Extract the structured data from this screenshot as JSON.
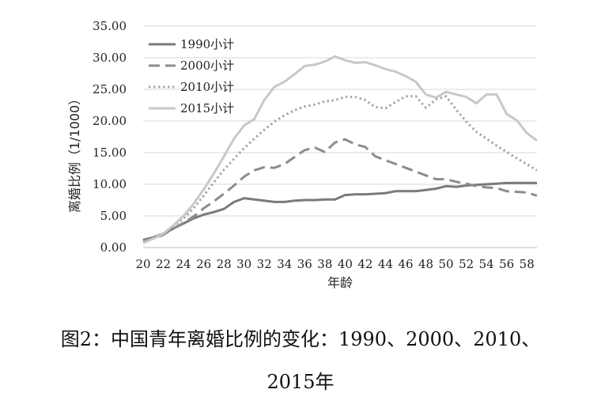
{
  "caption": {
    "line1": "图2：中国青年离婚比例的变化：1990、2000、2010、",
    "line2": "2015年"
  },
  "chart_data": {
    "type": "line",
    "xlabel": "年龄",
    "ylabel": "离婚比例（1/1000）",
    "ylim": [
      0,
      35
    ],
    "xlim": [
      20,
      59
    ],
    "y_ticks": [
      "0.00",
      "5.00",
      "10.00",
      "15.00",
      "20.00",
      "25.00",
      "30.00",
      "35.00"
    ],
    "x_ticks": [
      "20",
      "22",
      "24",
      "26",
      "28",
      "30",
      "32",
      "34",
      "36",
      "38",
      "40",
      "42",
      "44",
      "46",
      "48",
      "50",
      "52",
      "54",
      "56",
      "58"
    ],
    "grid": true,
    "legend_position": "top-left",
    "x": [
      20,
      21,
      22,
      23,
      24,
      25,
      26,
      27,
      28,
      29,
      30,
      31,
      32,
      33,
      34,
      35,
      36,
      37,
      38,
      39,
      40,
      41,
      42,
      43,
      44,
      45,
      46,
      47,
      48,
      49,
      50,
      51,
      52,
      53,
      54,
      55,
      56,
      57,
      58,
      59
    ],
    "series": [
      {
        "name": "1990小计",
        "color": "#7a7a7a",
        "dash": "solid",
        "values": [
          1.2,
          1.6,
          2.2,
          3.0,
          3.8,
          4.6,
          5.2,
          5.6,
          6.1,
          7.2,
          7.8,
          7.6,
          7.4,
          7.2,
          7.2,
          7.4,
          7.5,
          7.5,
          7.6,
          7.6,
          8.3,
          8.4,
          8.4,
          8.5,
          8.6,
          8.9,
          8.9,
          8.9,
          9.1,
          9.3,
          9.7,
          9.6,
          9.8,
          9.9,
          10.0,
          10.1,
          10.2,
          10.2,
          10.2,
          10.2
        ]
      },
      {
        "name": "2000小计",
        "color": "#8c8c8c",
        "dash": "dashed",
        "values": [
          1.0,
          1.4,
          2.0,
          3.0,
          3.9,
          4.9,
          6.2,
          7.3,
          8.5,
          9.8,
          11.2,
          12.2,
          12.7,
          12.6,
          13.2,
          14.3,
          15.4,
          15.8,
          15.1,
          16.6,
          17.1,
          16.3,
          15.9,
          14.4,
          13.8,
          13.2,
          12.6,
          12.0,
          11.4,
          10.8,
          10.8,
          10.4,
          10.1,
          9.7,
          9.5,
          9.4,
          8.9,
          8.8,
          8.7,
          8.2
        ]
      },
      {
        "name": "2010小计",
        "color": "#a8a8a8",
        "dash": "dotted",
        "values": [
          0.9,
          1.5,
          2.2,
          3.3,
          4.6,
          6.2,
          8.2,
          10.3,
          12.3,
          14.0,
          15.7,
          17.2,
          18.6,
          19.9,
          20.9,
          21.7,
          22.3,
          22.6,
          23.1,
          23.3,
          23.8,
          23.8,
          23.3,
          22.2,
          22.0,
          23.0,
          23.9,
          23.9,
          22.1,
          23.4,
          23.9,
          21.8,
          19.9,
          18.3,
          17.2,
          16.1,
          15.1,
          14.1,
          13.2,
          12.2
        ]
      },
      {
        "name": "2015小计",
        "color": "#c8c8c8",
        "dash": "solid",
        "values": [
          0.7,
          1.4,
          2.2,
          3.5,
          5.0,
          6.9,
          9.2,
          11.7,
          14.4,
          17.2,
          19.3,
          20.3,
          23.3,
          25.4,
          26.2,
          27.4,
          28.7,
          28.9,
          29.4,
          30.2,
          29.6,
          29.2,
          29.3,
          28.8,
          28.2,
          27.8,
          27.1,
          26.2,
          24.2,
          23.7,
          24.6,
          24.2,
          23.8,
          22.8,
          24.2,
          24.2,
          21.1,
          20.1,
          18.1,
          16.9
        ]
      }
    ]
  }
}
